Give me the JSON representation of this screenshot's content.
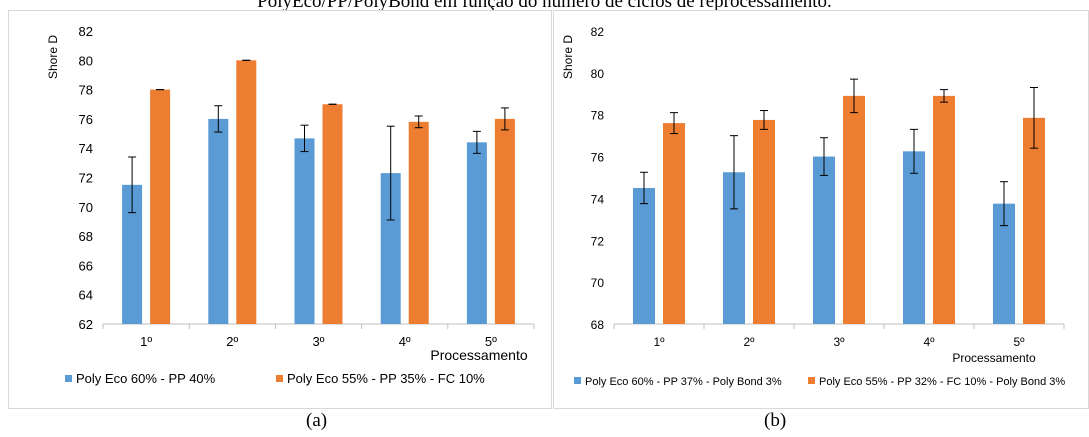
{
  "caption": "PolyEco/PP/PolyBond em função do número de ciclos de reprocessamento.",
  "panels": [
    {
      "label": "(a)"
    },
    {
      "label": "(b)"
    }
  ],
  "chart_data": [
    {
      "type": "bar",
      "ylabel": "Shore D",
      "xlabel": "Processamento",
      "ylim": [
        62,
        82
      ],
      "yticks": [
        62,
        64,
        66,
        68,
        70,
        72,
        74,
        76,
        78,
        80,
        82
      ],
      "categories": [
        "1º",
        "2º",
        "3º",
        "4º",
        "5º"
      ],
      "legend_position": "bottom",
      "series": [
        {
          "name": "Poly Eco 60% - PP 40%",
          "color": "#5b9bd5",
          "values": [
            71.5,
            76.0,
            74.67,
            72.3,
            74.4
          ],
          "errors": [
            1.9,
            0.9,
            0.9,
            3.2,
            0.75
          ]
        },
        {
          "name": "Poly Eco 55% - PP 35% - FC 10%",
          "color": "#ed7d31",
          "values": [
            78.0,
            80.0,
            77.0,
            75.8,
            76.0
          ],
          "errors": [
            0.0,
            0.0,
            0.0,
            0.4,
            0.75
          ]
        }
      ]
    },
    {
      "type": "bar",
      "ylabel": "Shore D",
      "xlabel": "Processamento",
      "ylim": [
        68,
        82
      ],
      "yticks": [
        68,
        70,
        72,
        74,
        76,
        78,
        80,
        82
      ],
      "categories": [
        "1º",
        "2º",
        "3º",
        "4º",
        "5º"
      ],
      "legend_position": "bottom",
      "series": [
        {
          "name": "Poly Eco 60% - PP 37% - Poly Bond 3%",
          "color": "#5b9bd5",
          "values": [
            74.5,
            75.25,
            76.0,
            76.25,
            73.75
          ],
          "errors": [
            0.75,
            1.75,
            0.9,
            1.05,
            1.05
          ]
        },
        {
          "name": "Poly Eco 55% - PP 32% - FC 10% - Poly Bond 3%",
          "color": "#ed7d31",
          "values": [
            77.6,
            77.75,
            78.9,
            78.9,
            77.85
          ],
          "errors": [
            0.5,
            0.45,
            0.8,
            0.3,
            1.45
          ]
        }
      ]
    }
  ]
}
